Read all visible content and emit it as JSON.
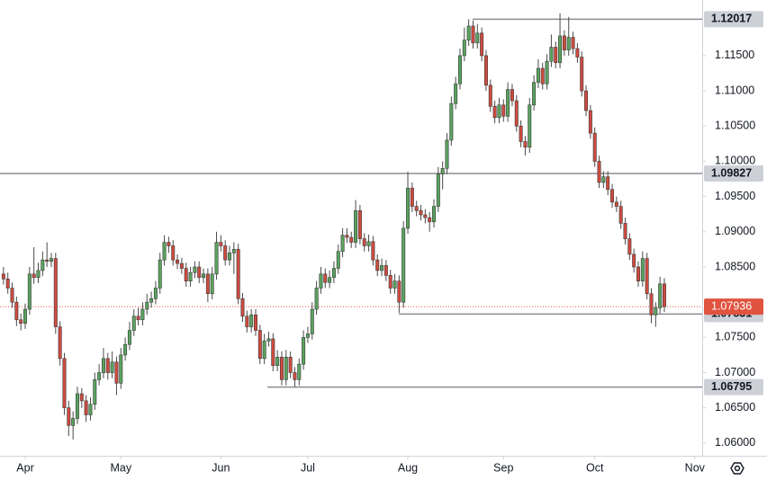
{
  "chart_data": {
    "type": "candlestick",
    "up_color": "#5aa35e",
    "down_color": "#cf4b3f",
    "level_color": "#8a8d94",
    "last_color": "#e0533f",
    "ylim": [
      1.0582,
      1.1229
    ],
    "xlim": [
      -0.8,
      160.7
    ],
    "yticks": [
      {
        "value": 1.06,
        "label": "1.06000"
      },
      {
        "value": 1.065,
        "label": "1.06500"
      },
      {
        "value": 1.07,
        "label": "1.07000"
      },
      {
        "value": 1.075,
        "label": "1.07500"
      },
      {
        "value": 1.085,
        "label": "1.08500"
      },
      {
        "value": 1.09,
        "label": "1.09000"
      },
      {
        "value": 1.095,
        "label": "1.09500"
      },
      {
        "value": 1.1,
        "label": "1.10000"
      },
      {
        "value": 1.105,
        "label": "1.10500"
      },
      {
        "value": 1.11,
        "label": "1.11000"
      },
      {
        "value": 1.115,
        "label": "1.11500"
      }
    ],
    "xticks": [
      {
        "value": 5,
        "label": "Apr"
      },
      {
        "value": 27,
        "label": "May"
      },
      {
        "value": 50,
        "label": "Jun"
      },
      {
        "value": 70,
        "label": "Jul"
      },
      {
        "value": 93,
        "label": "Aug"
      },
      {
        "value": 115,
        "label": "Sep"
      },
      {
        "value": 136,
        "label": "Oct"
      },
      {
        "value": 159,
        "label": "Nov"
      }
    ],
    "levels": [
      1.12017,
      1.09827,
      1.07831,
      1.06795
    ],
    "last_price": 1.07936,
    "ohlc": [
      [
        1.084,
        1.085,
        1.0825,
        1.0833
      ],
      [
        1.0833,
        1.0842,
        1.0812,
        1.082
      ],
      [
        1.082,
        1.0828,
        1.0792,
        1.08
      ],
      [
        1.08,
        1.0808,
        1.0766,
        1.0775
      ],
      [
        1.0775,
        1.0784,
        1.076,
        1.077
      ],
      [
        1.077,
        1.0798,
        1.0762,
        1.079
      ],
      [
        1.079,
        1.085,
        1.0782,
        1.084
      ],
      [
        1.084,
        1.0878,
        1.0826,
        1.0835
      ],
      [
        1.0835,
        1.0856,
        1.0827,
        1.0845
      ],
      [
        1.0845,
        1.0872,
        1.0837,
        1.086
      ],
      [
        1.086,
        1.0885,
        1.085,
        1.0858
      ],
      [
        1.0858,
        1.087,
        1.085,
        1.0862
      ],
      [
        1.0862,
        1.087,
        1.0755,
        1.0765
      ],
      [
        1.0765,
        1.0773,
        1.071,
        1.072
      ],
      [
        1.072,
        1.0728,
        1.064,
        1.065
      ],
      [
        1.065,
        1.066,
        1.061,
        1.0625
      ],
      [
        1.0625,
        1.0645,
        1.0605,
        1.0635
      ],
      [
        1.0635,
        1.068,
        1.0627,
        1.067
      ],
      [
        1.067,
        1.0678,
        1.065,
        1.066
      ],
      [
        1.066,
        1.0668,
        1.063,
        1.064
      ],
      [
        1.064,
        1.0665,
        1.0632,
        1.0655
      ],
      [
        1.0655,
        1.07,
        1.0647,
        1.069
      ],
      [
        1.069,
        1.0712,
        1.0682,
        1.07
      ],
      [
        1.07,
        1.0735,
        1.0692,
        1.072
      ],
      [
        1.072,
        1.0728,
        1.069,
        1.07
      ],
      [
        1.07,
        1.073,
        1.0692,
        1.0715
      ],
      [
        1.0715,
        1.0723,
        1.0668,
        1.0685
      ],
      [
        1.0685,
        1.0735,
        1.0677,
        1.0725
      ],
      [
        1.0725,
        1.075,
        1.0717,
        1.074
      ],
      [
        1.074,
        1.0772,
        1.0732,
        1.076
      ],
      [
        1.076,
        1.079,
        1.0752,
        1.078
      ],
      [
        1.078,
        1.0792,
        1.0767,
        1.0775
      ],
      [
        1.0775,
        1.08,
        1.0767,
        1.079
      ],
      [
        1.079,
        1.0812,
        1.0782,
        1.08
      ],
      [
        1.08,
        1.0815,
        1.0792,
        1.0805
      ],
      [
        1.0805,
        1.083,
        1.0797,
        1.082
      ],
      [
        1.082,
        1.087,
        1.0812,
        1.086
      ],
      [
        1.086,
        1.0895,
        1.0852,
        1.0885
      ],
      [
        1.0885,
        1.0893,
        1.087,
        1.088
      ],
      [
        1.088,
        1.0888,
        1.0852,
        1.086
      ],
      [
        1.086,
        1.0868,
        1.0847,
        1.0855
      ],
      [
        1.0855,
        1.0863,
        1.084,
        1.0848
      ],
      [
        1.0848,
        1.0856,
        1.0822,
        1.083
      ],
      [
        1.083,
        1.085,
        1.0822,
        1.0842
      ],
      [
        1.0842,
        1.0858,
        1.0834,
        1.085
      ],
      [
        1.085,
        1.0858,
        1.0827,
        1.0835
      ],
      [
        1.0835,
        1.0848,
        1.0827,
        1.084
      ],
      [
        1.084,
        1.0848,
        1.08,
        1.0812
      ],
      [
        1.0812,
        1.085,
        1.0804,
        1.084
      ],
      [
        1.084,
        1.09,
        1.0832,
        1.0885
      ],
      [
        1.0885,
        1.0895,
        1.0872,
        1.088
      ],
      [
        1.088,
        1.0888,
        1.0852,
        1.086
      ],
      [
        1.086,
        1.088,
        1.0852,
        1.087
      ],
      [
        1.087,
        1.0885,
        1.084,
        1.0875
      ],
      [
        1.0875,
        1.0883,
        1.0797,
        1.0805
      ],
      [
        1.0805,
        1.0813,
        1.0772,
        1.078
      ],
      [
        1.078,
        1.0788,
        1.0757,
        1.0765
      ],
      [
        1.0765,
        1.079,
        1.0757,
        1.0782
      ],
      [
        1.0782,
        1.079,
        1.0752,
        1.076
      ],
      [
        1.076,
        1.0768,
        1.0712,
        1.072
      ],
      [
        1.072,
        1.0755,
        1.0712,
        1.0745
      ],
      [
        1.0745,
        1.0758,
        1.0737,
        1.0748
      ],
      [
        1.0748,
        1.0756,
        1.0702,
        1.071
      ],
      [
        1.071,
        1.0732,
        1.0702,
        1.0722
      ],
      [
        1.0722,
        1.073,
        1.0682,
        1.069
      ],
      [
        1.069,
        1.0732,
        1.0682,
        1.0722
      ],
      [
        1.0722,
        1.073,
        1.0692,
        1.07
      ],
      [
        1.07,
        1.0708,
        1.068,
        1.069
      ],
      [
        1.069,
        1.072,
        1.0682,
        1.0712
      ],
      [
        1.0712,
        1.076,
        1.0704,
        1.075
      ],
      [
        1.075,
        1.0765,
        1.0742,
        1.0755
      ],
      [
        1.0755,
        1.08,
        1.0747,
        1.079
      ],
      [
        1.079,
        1.083,
        1.0782,
        1.082
      ],
      [
        1.082,
        1.085,
        1.0812,
        1.084
      ],
      [
        1.084,
        1.0848,
        1.082,
        1.0828
      ],
      [
        1.0828,
        1.0845,
        1.082,
        1.0835
      ],
      [
        1.0835,
        1.0858,
        1.0827,
        1.0848
      ],
      [
        1.0848,
        1.0882,
        1.084,
        1.0872
      ],
      [
        1.0872,
        1.0905,
        1.0864,
        1.0895
      ],
      [
        1.0895,
        1.0905,
        1.0884,
        1.0892
      ],
      [
        1.0892,
        1.09,
        1.0877,
        1.0885
      ],
      [
        1.0885,
        1.0945,
        1.0877,
        1.093
      ],
      [
        1.093,
        1.0938,
        1.0882,
        1.089
      ],
      [
        1.089,
        1.0898,
        1.0872,
        1.088
      ],
      [
        1.088,
        1.0896,
        1.0872,
        1.0886
      ],
      [
        1.0886,
        1.0894,
        1.0852,
        1.086
      ],
      [
        1.086,
        1.0868,
        1.0837,
        1.0845
      ],
      [
        1.0845,
        1.0862,
        1.0837,
        1.0852
      ],
      [
        1.0852,
        1.086,
        1.083,
        1.0838
      ],
      [
        1.0838,
        1.0846,
        1.0812,
        1.082
      ],
      [
        1.082,
        1.084,
        1.0812,
        1.083
      ],
      [
        1.083,
        1.0838,
        1.0785,
        1.08
      ],
      [
        1.08,
        1.0915,
        1.0792,
        1.0905
      ],
      [
        1.0905,
        1.0985,
        1.0897,
        1.0962
      ],
      [
        1.0962,
        1.097,
        1.0928,
        1.0936
      ],
      [
        1.0936,
        1.0944,
        1.0922,
        1.093
      ],
      [
        1.093,
        1.0938,
        1.0916,
        1.0924
      ],
      [
        1.0924,
        1.0932,
        1.0912,
        1.092
      ],
      [
        1.092,
        1.0928,
        1.09,
        1.0914
      ],
      [
        1.0914,
        1.0946,
        1.0906,
        1.0936
      ],
      [
        1.0936,
        1.0992,
        1.0928,
        1.0982
      ],
      [
        1.0982,
        1.1,
        1.096,
        1.099
      ],
      [
        1.099,
        1.104,
        1.0982,
        1.103
      ],
      [
        1.103,
        1.1092,
        1.1022,
        1.1082
      ],
      [
        1.1082,
        1.112,
        1.1074,
        1.111
      ],
      [
        1.111,
        1.116,
        1.1102,
        1.115
      ],
      [
        1.115,
        1.119,
        1.1142,
        1.1172
      ],
      [
        1.1172,
        1.12017,
        1.1164,
        1.1192
      ],
      [
        1.1192,
        1.12,
        1.116,
        1.1168
      ],
      [
        1.1168,
        1.1195,
        1.116,
        1.1182
      ],
      [
        1.1182,
        1.119,
        1.1142,
        1.115
      ],
      [
        1.115,
        1.1158,
        1.11,
        1.1108
      ],
      [
        1.1108,
        1.1116,
        1.107,
        1.1078
      ],
      [
        1.1078,
        1.1086,
        1.1054,
        1.1062
      ],
      [
        1.1062,
        1.109,
        1.1054,
        1.108
      ],
      [
        1.108,
        1.1088,
        1.1056,
        1.1064
      ],
      [
        1.1064,
        1.1112,
        1.1056,
        1.1102
      ],
      [
        1.1102,
        1.111,
        1.1078,
        1.1086
      ],
      [
        1.1086,
        1.1094,
        1.1042,
        1.105
      ],
      [
        1.105,
        1.1058,
        1.102,
        1.1028
      ],
      [
        1.1028,
        1.1036,
        1.1008,
        1.102
      ],
      [
        1.102,
        1.109,
        1.1012,
        1.108
      ],
      [
        1.108,
        1.1122,
        1.1072,
        1.1112
      ],
      [
        1.1112,
        1.1145,
        1.1104,
        1.1132
      ],
      [
        1.1132,
        1.114,
        1.1102,
        1.111
      ],
      [
        1.111,
        1.1152,
        1.1102,
        1.1142
      ],
      [
        1.1142,
        1.118,
        1.1134,
        1.1162
      ],
      [
        1.1162,
        1.117,
        1.1132,
        1.114
      ],
      [
        1.114,
        1.121,
        1.1132,
        1.1178
      ],
      [
        1.1178,
        1.1186,
        1.115,
        1.1158
      ],
      [
        1.1158,
        1.1205,
        1.115,
        1.1176
      ],
      [
        1.1176,
        1.1184,
        1.1152,
        1.116
      ],
      [
        1.116,
        1.1168,
        1.114,
        1.1148
      ],
      [
        1.1148,
        1.1156,
        1.1092,
        1.11
      ],
      [
        1.11,
        1.1108,
        1.1064,
        1.1072
      ],
      [
        1.1072,
        1.108,
        1.1032,
        1.104
      ],
      [
        1.104,
        1.1048,
        1.0992,
        1.1
      ],
      [
        1.1,
        1.1008,
        1.0962,
        1.097
      ],
      [
        1.097,
        1.0986,
        1.0962,
        1.0978
      ],
      [
        1.0978,
        1.0986,
        1.0952,
        1.096
      ],
      [
        1.096,
        1.0968,
        1.0934,
        1.0942
      ],
      [
        1.0942,
        1.095,
        1.0928,
        1.0936
      ],
      [
        1.0936,
        1.0944,
        1.0904,
        1.0912
      ],
      [
        1.0912,
        1.092,
        1.0882,
        1.089
      ],
      [
        1.089,
        1.0898,
        1.086,
        1.0868
      ],
      [
        1.0868,
        1.0876,
        1.0842,
        1.085
      ],
      [
        1.085,
        1.0858,
        1.0822,
        1.083
      ],
      [
        1.083,
        1.0872,
        1.0822,
        1.0862
      ],
      [
        1.0862,
        1.087,
        1.0804,
        1.0812
      ],
      [
        1.0812,
        1.082,
        1.077,
        1.0782
      ],
      [
        1.0782,
        1.08,
        1.0765,
        1.0792
      ],
      [
        1.0792,
        1.0836,
        1.0784,
        1.0826
      ],
      [
        1.0826,
        1.0834,
        1.0786,
        1.07936
      ]
    ]
  }
}
